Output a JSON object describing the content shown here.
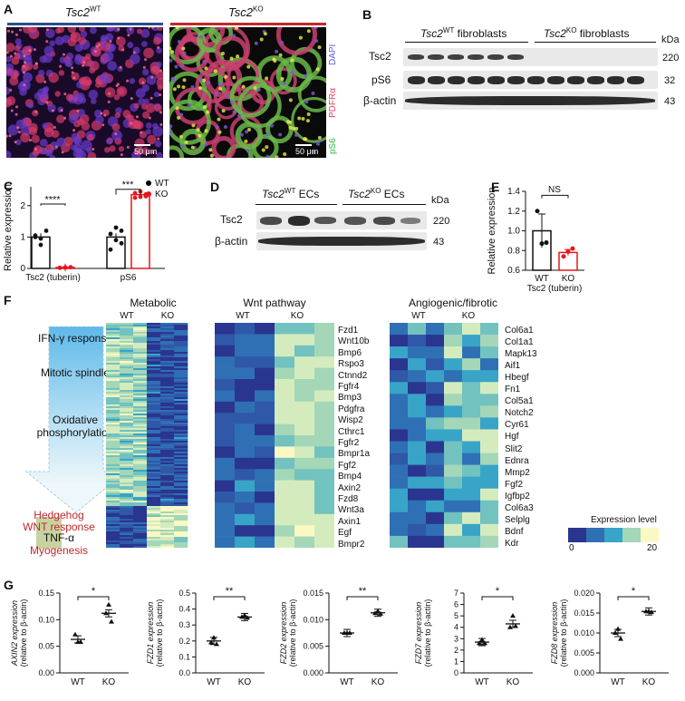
{
  "panel_labels": {
    "A": "A",
    "B": "B",
    "C": "C",
    "D": "D",
    "E": "E",
    "F": "F",
    "G": "G"
  },
  "panelA": {
    "wt_title_gene": "Tsc2",
    "wt_title_sup": "WT",
    "ko_title_gene": "Tsc2",
    "ko_title_sup": "KO",
    "wt_scale": "50 μm",
    "ko_scale": "50 μm",
    "stain_dapi": "DAPI",
    "stain_pdfr": "PDFRα",
    "stain_ps6": "pS6",
    "colors": {
      "wt_bar": "#2b4f8c",
      "ko_bar": "#c0282d",
      "dapi": "#5a5ae0",
      "pdfr": "#e0405a",
      "ps6": "#2fb84a"
    }
  },
  "panelB": {
    "wt_group_gene": "Tsc2",
    "wt_group_sup": "WT",
    "wt_group_suffix": " fibroblasts",
    "ko_group_gene": "Tsc2",
    "ko_group_sup": "KO",
    "ko_group_suffix": " fibroblasts",
    "kda": "kDa",
    "rows": [
      {
        "label": "Tsc2",
        "kda": "220"
      },
      {
        "label": "pS6",
        "kda": "32"
      },
      {
        "label": "β-actin",
        "kda": "43"
      }
    ]
  },
  "panelC": {
    "ylabel": "Relative expression",
    "yticks": [
      "0",
      "1",
      "2"
    ],
    "xcats": [
      "Tsc2 (tuberin)",
      "pS6"
    ],
    "legend": [
      {
        "name": "WT",
        "color": "#000000"
      },
      {
        "name": "KO",
        "color": "#e8161b"
      }
    ],
    "sig1": "****",
    "sig2": "***"
  },
  "panelD": {
    "wt_group_gene": "Tsc2",
    "wt_group_sup": "WT",
    "wt_group_suffix": " ECs",
    "ko_group_gene": "Tsc2",
    "ko_group_sup": "KO",
    "ko_group_suffix": " ECs",
    "kda": "kDa",
    "rows": [
      {
        "label": "Tsc2",
        "kda": "220"
      },
      {
        "label": "β-actin",
        "kda": "43"
      }
    ]
  },
  "panelE": {
    "ylabel": "Relative expression",
    "yticks": [
      "0.6",
      "0.8",
      "1.0",
      "1.2",
      "1.4"
    ],
    "xcats": [
      "WT",
      "KO"
    ],
    "xsub": "Tsc2 (tuberin)",
    "sig": "NS"
  },
  "panelF": {
    "pathways_top": [
      "IFN-γ response",
      "Mitotic spindle",
      "Oxidative phosphorylation"
    ],
    "pathways_bottom": [
      {
        "text": "Hedgehog",
        "color": "#c0282d"
      },
      {
        "text": "WNT response",
        "color": "#c0282d"
      },
      {
        "text": "TNF-α",
        "color": "#111111"
      },
      {
        "text": "Myogenesis",
        "color": "#c0282d"
      }
    ],
    "metabolic_title": "Metabolic",
    "wnt_title": "Wnt pathway",
    "angio_title": "Angiogenic/fibrotic",
    "wt": "WT",
    "ko": "KO",
    "wnt_genes": [
      "Fzd1",
      "Wnt10b",
      "Bmp6",
      "Rspo3",
      "Ctnnd2",
      "Fgfr4",
      "Bmp3",
      "Pdgfra",
      "Wisp2",
      "Cthrc1",
      "Fgfr2",
      "Bmpr1a",
      "Fgf2",
      "Bmp4",
      "Axin2",
      "Fzd8",
      "Wnt3a",
      "Axin1",
      "Egf",
      "Bmpr2"
    ],
    "angio_genes": [
      "Col6a1",
      "Col1a1",
      "Mapk13",
      "Aif1",
      "Hbegf",
      "Fn1",
      "Col5a1",
      "Notch2",
      "Cyr61",
      "Hgf",
      "Slit2",
      "Ednra",
      "Mmp2",
      "Fgf2",
      "Igfbp2",
      "Col6a3",
      "Selplg",
      "Bdnf",
      "Kdr"
    ],
    "legend_title": "Expression level",
    "legend_min": "0",
    "legend_max": "20",
    "colors": {
      "low": "#2a3590",
      "mid": "#38a4c8",
      "high": "#fbf8c4"
    }
  },
  "panelG": {
    "xcats": [
      "WT",
      "KO"
    ],
    "sub_ylabel": "(relative to β-actin)",
    "plots": [
      {
        "ylabel": "AXIN2 expression",
        "yticks": [
          "0.00",
          "0.05",
          "0.10",
          "0.15"
        ],
        "sig": "*"
      },
      {
        "ylabel": "FZD1 expression",
        "yticks": [
          "0.0",
          "0.1",
          "0.2",
          "0.3",
          "0.4",
          "0.5"
        ],
        "sig": "**"
      },
      {
        "ylabel": "FZD2 expression",
        "yticks": [
          "0.000",
          "0.005",
          "0.010",
          "0.015"
        ],
        "sig": "**"
      },
      {
        "ylabel": "FZD7 expression",
        "yticks": [
          "0",
          "1",
          "2",
          "3",
          "4",
          "5",
          "6",
          "7"
        ],
        "sig": "*"
      },
      {
        "ylabel": "FZD8 expression",
        "yticks": [
          "0.000",
          "0.005",
          "0.010",
          "0.015",
          "0.020"
        ],
        "sig": "*"
      }
    ]
  },
  "chart_data": [
    {
      "type": "bar",
      "title": "",
      "ylabel": "Relative expression",
      "categories": [
        "Tsc2 (tuberin)",
        "pS6"
      ],
      "ylim": [
        0,
        2.6
      ],
      "series": [
        {
          "name": "WT",
          "values": [
            1.0,
            1.0
          ],
          "points": [
            [
              1.05,
              0.75,
              1.2,
              1.0,
              0.95
            ],
            [
              0.6,
              1.3,
              0.8,
              1.1,
              0.9,
              1.2
            ]
          ]
        },
        {
          "name": "KO",
          "values": [
            0.03,
            2.35
          ],
          "points": [
            [
              0.02,
              0.03,
              0.04,
              0.02,
              0.03
            ],
            [
              2.25,
              2.45,
              2.3,
              2.4,
              2.28,
              2.36
            ]
          ]
        }
      ]
    },
    {
      "type": "bar",
      "title": "",
      "ylabel": "Relative expression",
      "categories": [
        "WT",
        "KO"
      ],
      "ylim": [
        0.6,
        1.4
      ],
      "series": [
        {
          "name": "Tsc2 (tuberin)",
          "values": [
            1.0,
            0.78
          ],
          "error": [
            0.17,
            0.03
          ],
          "points": [
            [
              1.2,
              0.87,
              0.88
            ],
            [
              0.74,
              0.79,
              0.82
            ]
          ]
        }
      ]
    },
    {
      "type": "scatter",
      "ylabel": "AXIN2 expression",
      "categories": [
        "WT",
        "KO"
      ],
      "ylim": [
        0,
        0.15
      ],
      "means": [
        0.063,
        0.112
      ],
      "points": [
        [
          0.058,
          0.072,
          0.058
        ],
        [
          0.128,
          0.112,
          0.096
        ]
      ]
    },
    {
      "type": "scatter",
      "ylabel": "FZD1 expression",
      "categories": [
        "WT",
        "KO"
      ],
      "ylim": [
        0,
        0.5
      ],
      "means": [
        0.2,
        0.35
      ],
      "points": [
        [
          0.22,
          0.19,
          0.18
        ],
        [
          0.36,
          0.35,
          0.345
        ]
      ]
    },
    {
      "type": "scatter",
      "ylabel": "FZD2 expression",
      "categories": [
        "WT",
        "KO"
      ],
      "ylim": [
        0,
        0.015
      ],
      "means": [
        0.0075,
        0.0113
      ],
      "points": [
        [
          0.0075,
          0.0075,
          0.0075
        ],
        [
          0.0116,
          0.0112,
          0.0111
        ]
      ]
    },
    {
      "type": "scatter",
      "ylabel": "FZD7 expression",
      "categories": [
        "WT",
        "KO"
      ],
      "ylim": [
        0,
        7
      ],
      "means": [
        2.7,
        4.3
      ],
      "points": [
        [
          2.9,
          2.6,
          2.6
        ],
        [
          5.0,
          4.0,
          4.1
        ]
      ]
    },
    {
      "type": "scatter",
      "ylabel": "FZD8 expression",
      "categories": [
        "WT",
        "KO"
      ],
      "ylim": [
        0,
        0.02
      ],
      "means": [
        0.01,
        0.0154
      ],
      "points": [
        [
          0.011,
          0.01,
          0.0085
        ],
        [
          0.0154,
          0.0154,
          0.0152
        ]
      ]
    }
  ]
}
